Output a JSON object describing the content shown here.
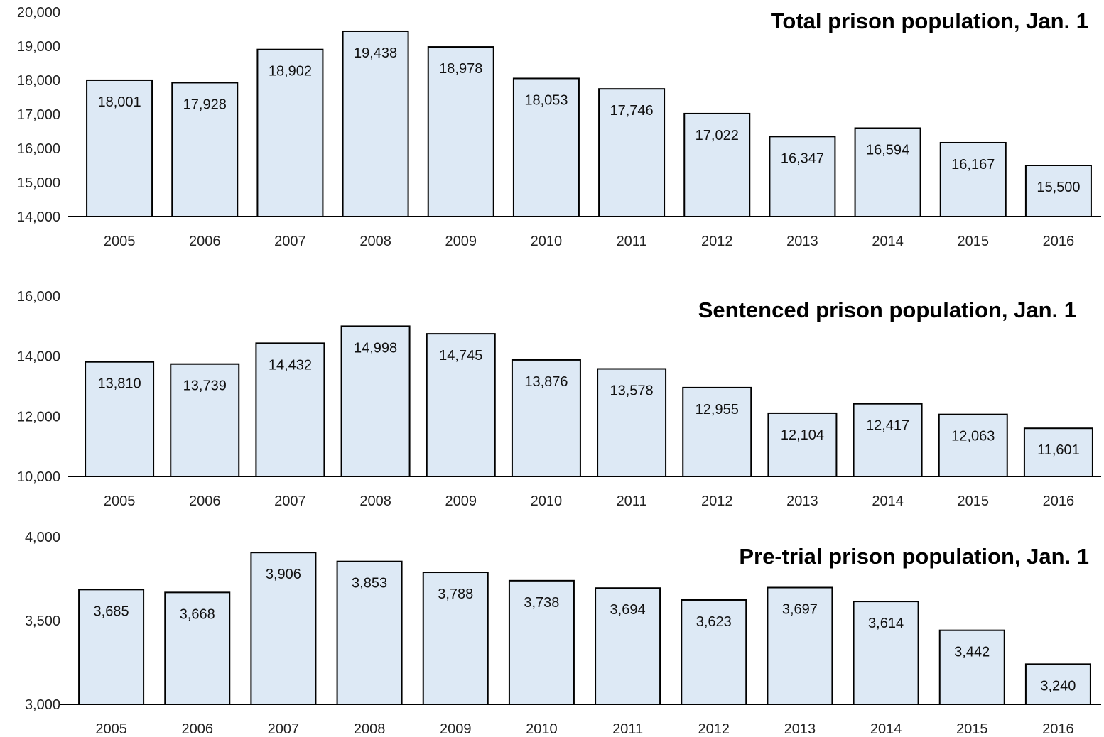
{
  "colors": {
    "bar_fill": "#DDE9F5",
    "bar_stroke": "#000000",
    "axis": "#000000"
  },
  "chart_data": [
    {
      "type": "bar",
      "title": "Total prison population, Jan. 1",
      "categories": [
        "2005",
        "2006",
        "2007",
        "2008",
        "2009",
        "2010",
        "2011",
        "2012",
        "2013",
        "2014",
        "2015",
        "2016"
      ],
      "values": [
        18001,
        17928,
        18902,
        19438,
        18978,
        18053,
        17746,
        17022,
        16347,
        16594,
        16167,
        15500
      ],
      "value_labels": [
        "18,001",
        "17,928",
        "18,902",
        "19,438",
        "18,978",
        "18,053",
        "17,746",
        "17,022",
        "16,347",
        "16,594",
        "16,167",
        "15,500"
      ],
      "ylim": [
        14000,
        20000
      ],
      "yticks": [
        14000,
        15000,
        16000,
        17000,
        18000,
        19000,
        20000
      ],
      "ytick_labels": [
        "14,000",
        "15,000",
        "16,000",
        "17,000",
        "18,000",
        "19,000",
        "20,000"
      ],
      "grid": false,
      "legend": false
    },
    {
      "type": "bar",
      "title": "Sentenced prison population, Jan. 1",
      "categories": [
        "2005",
        "2006",
        "2007",
        "2008",
        "2009",
        "2010",
        "2011",
        "2012",
        "2013",
        "2014",
        "2015",
        "2016"
      ],
      "values": [
        13810,
        13739,
        14432,
        14998,
        14745,
        13876,
        13578,
        12955,
        12104,
        12417,
        12063,
        11601
      ],
      "value_labels": [
        "13,810",
        "13,739",
        "14,432",
        "14,998",
        "14,745",
        "13,876",
        "13,578",
        "12,955",
        "12,104",
        "12,417",
        "12,063",
        "11,601"
      ],
      "ylim": [
        10000,
        16000
      ],
      "yticks": [
        10000,
        12000,
        14000,
        16000
      ],
      "ytick_labels": [
        "10,000",
        "12,000",
        "14,000",
        "16,000"
      ],
      "grid": false,
      "legend": false
    },
    {
      "type": "bar",
      "title": "Pre-trial prison population, Jan. 1",
      "categories": [
        "2005",
        "2006",
        "2007",
        "2008",
        "2009",
        "2010",
        "2011",
        "2012",
        "2013",
        "2014",
        "2015",
        "2016"
      ],
      "values": [
        3685,
        3668,
        3906,
        3853,
        3788,
        3738,
        3694,
        3623,
        3697,
        3614,
        3442,
        3240
      ],
      "value_labels": [
        "3,685",
        "3,668",
        "3,906",
        "3,853",
        "3,788",
        "3,738",
        "3,694",
        "3,623",
        "3,697",
        "3,614",
        "3,442",
        "3,240"
      ],
      "ylim": [
        3000,
        4000
      ],
      "yticks": [
        3000,
        3500,
        4000
      ],
      "ytick_labels": [
        "3,000",
        "3,500",
        "4,000"
      ],
      "grid": false,
      "legend": false
    }
  ]
}
